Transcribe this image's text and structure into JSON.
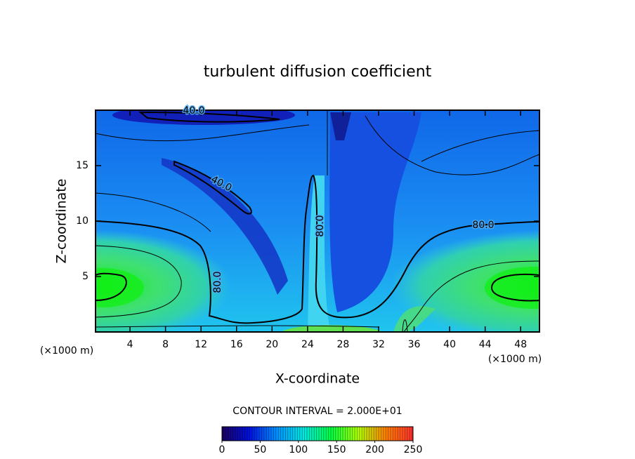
{
  "chart_data": {
    "type": "contour",
    "title": "turbulent diffusion coefficient",
    "x_label": "X-coordinate",
    "y_label": "Z-coordinate",
    "x_unit": "(×1000 m)",
    "xlim": [
      0,
      50
    ],
    "xticks": [
      4,
      8,
      12,
      16,
      20,
      24,
      28,
      32,
      36,
      40,
      44,
      48
    ],
    "ylim": [
      0,
      20
    ],
    "yticks": [
      5,
      10,
      15
    ],
    "contour_levels": [
      {
        "value": 40,
        "label": "40.0"
      },
      {
        "value": 80,
        "label": "80.0"
      }
    ],
    "contour_interval": "CONTOUR INTERVAL = 2.000E+01",
    "clim": [
      0,
      250
    ],
    "cticks": [
      0,
      50,
      100,
      150,
      200,
      250
    ],
    "colormap": [
      "#1a0060",
      "#0010e0",
      "#0090ff",
      "#00e8e0",
      "#00ff40",
      "#b0ff00",
      "#ff8000",
      "#ff3030"
    ]
  }
}
